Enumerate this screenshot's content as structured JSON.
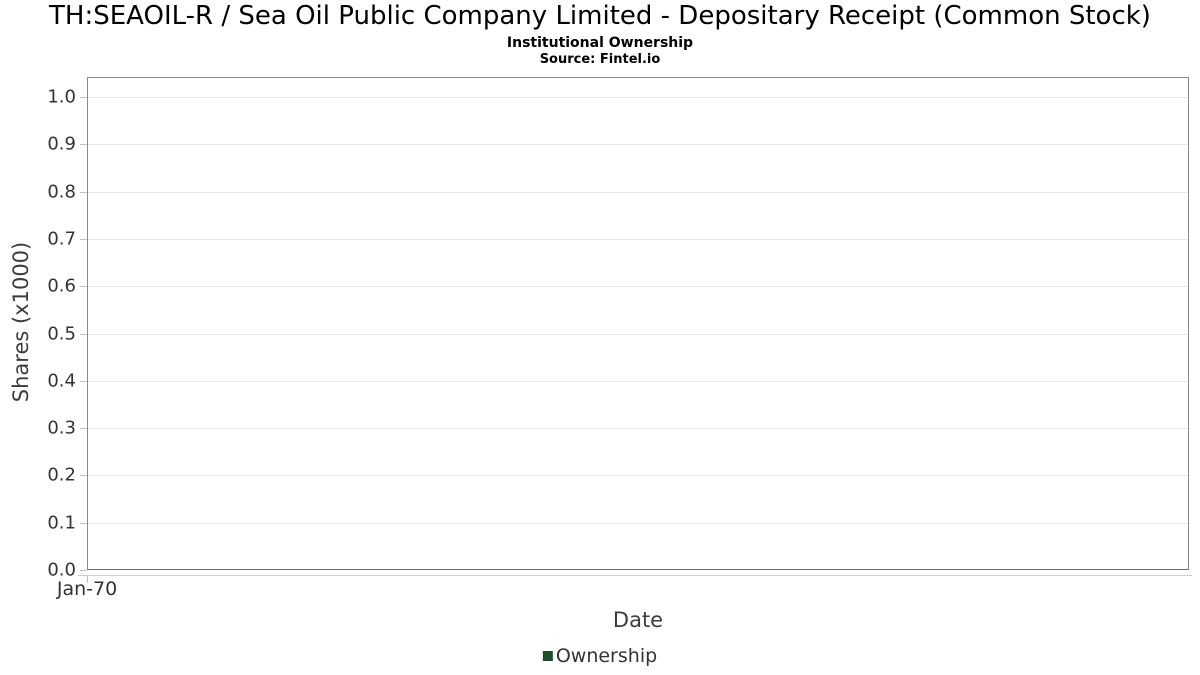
{
  "chart_data": {
    "type": "line",
    "title": "TH:SEAOIL-R / Sea Oil Public Company Limited - Depositary Receipt (Common Stock)",
    "subtitle": "Institutional Ownership",
    "source": "Source: Fintel.io",
    "xlabel": "Date",
    "ylabel": "Shares (x1000)",
    "x_tick_labels": [
      "Jan-70"
    ],
    "y_ticks": [
      0.0,
      0.1,
      0.2,
      0.3,
      0.4,
      0.5,
      0.6,
      0.7,
      0.8,
      0.9,
      1.0
    ],
    "y_tick_labels": [
      "0.0",
      "0.1",
      "0.2",
      "0.3",
      "0.4",
      "0.5",
      "0.6",
      "0.7",
      "0.8",
      "0.9",
      "1.0"
    ],
    "ylim": [
      0,
      1.04
    ],
    "grid": true,
    "legend": {
      "position": "bottom",
      "entries": [
        {
          "label": "Ownership",
          "color": "#1d4d2b"
        }
      ]
    },
    "series": [
      {
        "name": "Ownership",
        "color": "#1d4d2b",
        "x": [],
        "values": []
      }
    ]
  },
  "colors": {
    "grid": "#e6e6e6",
    "plot_border": "#8a8a8a",
    "axis_line": "#cccccc",
    "tick_text": "#333333",
    "axis_title_text": "#3c3c3c",
    "series_ownership": "#1d4d2b"
  }
}
